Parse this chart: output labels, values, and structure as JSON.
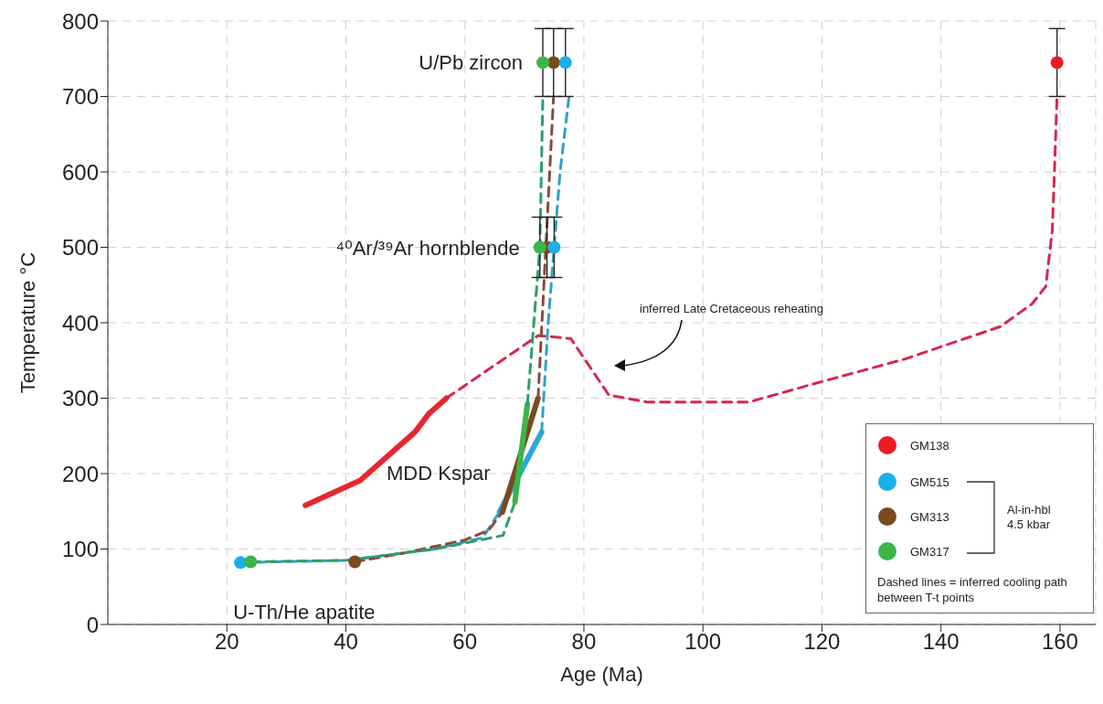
{
  "chart_data": {
    "type": "scatter",
    "xlabel": "Age (Ma)",
    "ylabel": "Temperature °C",
    "xlim": [
      0,
      166
    ],
    "ylim": [
      0,
      800
    ],
    "xticks": [
      20,
      40,
      60,
      80,
      100,
      120,
      140,
      160
    ],
    "yticks": [
      0,
      100,
      200,
      300,
      400,
      500,
      600,
      700,
      800
    ],
    "grid": true,
    "legend": "bottom right",
    "series": [
      {
        "type": "line",
        "line_style": "solid",
        "color": "#e8262e",
        "x": [
          33.2,
          42.4,
          51.6,
          53.9,
          56.9
        ],
        "values": [
          158,
          191,
          255,
          279,
          300
        ]
      },
      {
        "type": "line",
        "line_style": "dashed",
        "color": "#d6264e",
        "x": [
          56.9,
          72.3,
          77.8,
          84.2,
          90.5,
          107.8,
          120,
          134,
          150,
          155.3,
          157.6,
          158.7,
          159.1,
          159.5
        ],
        "values": [
          300,
          383,
          379,
          304,
          295,
          295,
          322,
          352,
          395,
          425,
          448,
          522,
          607,
          700
        ]
      },
      {
        "type": "line",
        "line_style": "dashed",
        "color": "#2fa0c8",
        "x": [
          22.3,
          40,
          55,
          63,
          65.8
        ],
        "values": [
          82,
          85,
          100,
          115,
          149
        ]
      },
      {
        "type": "line",
        "line_style": "solid",
        "color": "#2aa8e0",
        "x": [
          65.8,
          72.9
        ],
        "values": [
          149,
          255
        ]
      },
      {
        "type": "line",
        "line_style": "dashed",
        "color": "#2fa0c8",
        "x": [
          72.9,
          74,
          75,
          76,
          77.5
        ],
        "values": [
          255,
          400,
          500,
          600,
          700
        ]
      },
      {
        "type": "line",
        "line_style": "dashed",
        "color": "#8a4a3a",
        "x": [
          41.5,
          50,
          60,
          64,
          66.3
        ],
        "values": [
          83,
          95,
          112,
          125,
          149
        ]
      },
      {
        "type": "line",
        "line_style": "solid",
        "color": "#7b4a1e",
        "x": [
          66.3,
          72.3
        ],
        "values": [
          149,
          300
        ]
      },
      {
        "type": "line",
        "line_style": "dashed",
        "color": "#8a4a3a",
        "x": [
          72.3,
          74.9
        ],
        "values": [
          300,
          700
        ]
      },
      {
        "type": "line",
        "line_style": "dashed",
        "color": "#2e9e6a",
        "x": [
          24,
          40,
          55,
          66.4,
          68.4
        ],
        "values": [
          83,
          85,
          100,
          118,
          162
        ]
      },
      {
        "type": "line",
        "line_style": "solid",
        "color": "#3cb54a",
        "x": [
          68.4,
          70.5
        ],
        "values": [
          162,
          292
        ]
      },
      {
        "type": "line",
        "line_style": "dashed",
        "color": "#2e9e6a",
        "x": [
          70.5,
          72.6,
          73.1
        ],
        "values": [
          292,
          500,
          700
        ]
      },
      {
        "marker": "circle",
        "name": "GM138",
        "color": "#ed1c24",
        "x": [
          159.5
        ],
        "values": [
          745
        ],
        "errors": [
          45
        ]
      },
      {
        "marker": "circle",
        "name": "GM515",
        "color": "#1ab0e8",
        "x": [
          22.3,
          75,
          76.9
        ],
        "values": [
          82,
          500,
          745
        ],
        "errors": [
          null,
          40,
          45
        ]
      },
      {
        "marker": "circle",
        "name": "GM313",
        "color": "#7b4a1e",
        "x": [
          41.5,
          73.8,
          74.9
        ],
        "values": [
          83,
          500,
          745
        ],
        "errors": [
          null,
          40,
          45
        ]
      },
      {
        "marker": "circle",
        "name": "GM317",
        "color": "#3cb54a",
        "x": [
          24,
          72.6,
          73.1
        ],
        "values": [
          83,
          500,
          745
        ],
        "errors": [
          null,
          40,
          45
        ]
      }
    ],
    "annotations": [
      {
        "text": "U/Pb zircon",
        "x": 73.1,
        "y": 745
      },
      {
        "text": "⁴⁰Ar/³⁹Ar hornblende",
        "x": 72.6,
        "y": 500
      },
      "MDD Kspar",
      {
        "text": "U-Th/He apatite",
        "x": 22.3,
        "y": 82
      },
      "inferred Late Cretaceous reheating",
      "Al-in-hbl 4.5 kbar",
      "Dashed lines = inferred cooling path between T-t points"
    ]
  }
}
